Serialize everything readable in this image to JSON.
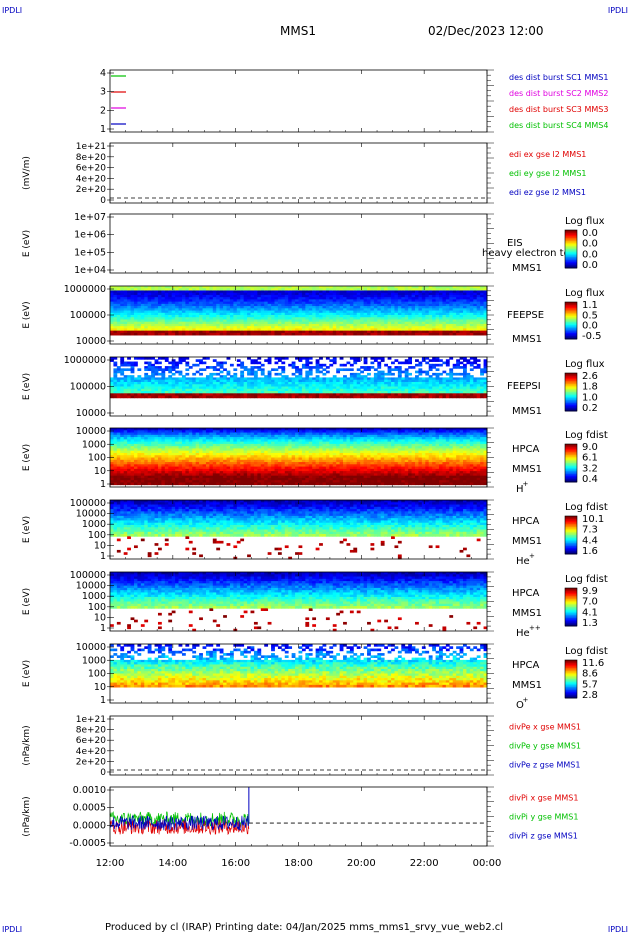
{
  "header": {
    "corner_tl": "IPDLI",
    "corner_tr": "IPDLI",
    "corner_bl": "IPDLI",
    "corner_br": "IPDLI",
    "mission": "MMS1",
    "datetime": "02/Dec/2023 12:00"
  },
  "footer": {
    "text": "Produced by cl (IRAP)   Printing date: 04/Jan/2025   mms_mms1_srvy_vue_web2.cl"
  },
  "colors": {
    "red": "#e00000",
    "green": "#00c000",
    "blue": "#0000c0",
    "magenta": "#e000e0"
  },
  "chart_data": [
    {
      "id": "burst",
      "type": "line",
      "yticks": [
        "4",
        "3",
        "2",
        "1"
      ],
      "legend": [
        {
          "name": "des dist burst SC1 MMS1",
          "color": "#0000c0"
        },
        {
          "name": "des dist burst SC2 MMS2",
          "color": "#e000e0"
        },
        {
          "name": "des dist burst SC3 MMS3",
          "color": "#e00000"
        },
        {
          "name": "des dist burst SC4 MMS4",
          "color": "#00c000"
        }
      ]
    },
    {
      "id": "edi",
      "type": "line",
      "ylabel": "(mV/m)",
      "yticks": [
        "1e+21",
        "8e+20",
        "6e+20",
        "4e+20",
        "2e+20",
        "0"
      ],
      "legend": [
        {
          "name": "edi ex gse l2 MMS1",
          "color": "#e00000"
        },
        {
          "name": "edi ey gse l2 MMS1",
          "color": "#00c000"
        },
        {
          "name": "edi ez gse l2 MMS1",
          "color": "#0000c0"
        }
      ]
    },
    {
      "id": "eis",
      "type": "heatmap",
      "ylabel": "E (eV)",
      "yticks": [
        "1e+07",
        "1e+06",
        "1e+05",
        "1e+04"
      ],
      "instrument": "EIS",
      "subtitle": "heavy electron to",
      "spacecraft": "MMS1",
      "colorbar_title": "Log flux",
      "colorbar_ticks": [
        "0.0",
        "0.0",
        "0.0",
        "0.0"
      ]
    },
    {
      "id": "feepse",
      "type": "heatmap",
      "ylabel": "E (eV)",
      "yticks": [
        "1000000",
        "100000",
        "10000"
      ],
      "instrument": "FEEPSE",
      "spacecraft": "MMS1",
      "colorbar_title": "Log flux",
      "colorbar_ticks": [
        "1.1",
        "0.5",
        "0.0",
        "-0.5"
      ]
    },
    {
      "id": "feepsi",
      "type": "heatmap",
      "ylabel": "E (eV)",
      "yticks": [
        "1000000",
        "100000",
        "10000"
      ],
      "instrument": "FEEPSI",
      "spacecraft": "MMS1",
      "colorbar_title": "Log flux",
      "colorbar_ticks": [
        "2.6",
        "1.8",
        "1.0",
        "0.2"
      ]
    },
    {
      "id": "hpca_h",
      "type": "heatmap",
      "ylabel": "E (eV)",
      "yticks": [
        "10000",
        "1000",
        "100",
        "10",
        "1"
      ],
      "instrument": "HPCA",
      "spacecraft": "MMS1",
      "species": "H",
      "species_sup": "+",
      "colorbar_title": "Log fdist",
      "colorbar_ticks": [
        "9.0",
        "6.1",
        "3.2",
        "0.4"
      ]
    },
    {
      "id": "hpca_he",
      "type": "heatmap",
      "ylabel": "E (eV)",
      "yticks": [
        "100000",
        "10000",
        "1000",
        "100",
        "10",
        "1"
      ],
      "instrument": "HPCA",
      "spacecraft": "MMS1",
      "species": "He",
      "species_sup": "+",
      "colorbar_title": "Log fdist",
      "colorbar_ticks": [
        "10.1",
        "7.3",
        "4.4",
        "1.6"
      ]
    },
    {
      "id": "hpca_hepp",
      "type": "heatmap",
      "ylabel": "E (eV)",
      "yticks": [
        "100000",
        "10000",
        "1000",
        "100",
        "10",
        "1"
      ],
      "instrument": "HPCA",
      "spacecraft": "MMS1",
      "species": "He",
      "species_sup": "++",
      "colorbar_title": "Log fdist",
      "colorbar_ticks": [
        "9.9",
        "7.0",
        "4.1",
        "1.3"
      ]
    },
    {
      "id": "hpca_o",
      "type": "heatmap",
      "ylabel": "E (eV)",
      "yticks": [
        "10000",
        "1000",
        "100",
        "10",
        "1"
      ],
      "instrument": "HPCA",
      "spacecraft": "MMS1",
      "species": "O",
      "species_sup": "+",
      "colorbar_title": "Log fdist",
      "colorbar_ticks": [
        "11.6",
        "8.6",
        "5.7",
        "2.8"
      ]
    },
    {
      "id": "divpe",
      "type": "line",
      "ylabel": "(nPa/km)",
      "yticks": [
        "1e+21",
        "8e+20",
        "6e+20",
        "4e+20",
        "2e+20",
        "0"
      ],
      "legend": [
        {
          "name": "divPe x gse MMS1",
          "color": "#e00000"
        },
        {
          "name": "divPe y gse MMS1",
          "color": "#00c000"
        },
        {
          "name": "divPe z gse MMS1",
          "color": "#0000c0"
        }
      ]
    },
    {
      "id": "divpi",
      "type": "line",
      "ylabel": "(nPa/km)",
      "yticks": [
        "0.0010",
        "0.0005",
        "0.0000",
        "-0.0005"
      ],
      "ylim": [
        -0.0007,
        0.0011
      ],
      "data_end_time": "16:25",
      "legend": [
        {
          "name": "divPi x gse MMS1",
          "color": "#e00000"
        },
        {
          "name": "divPi y gse MMS1",
          "color": "#00c000"
        },
        {
          "name": "divPi z gse MMS1",
          "color": "#0000c0"
        }
      ]
    }
  ],
  "xaxis": {
    "ticks": [
      "12:00",
      "14:00",
      "16:00",
      "18:00",
      "20:00",
      "22:00",
      "00:00"
    ]
  }
}
